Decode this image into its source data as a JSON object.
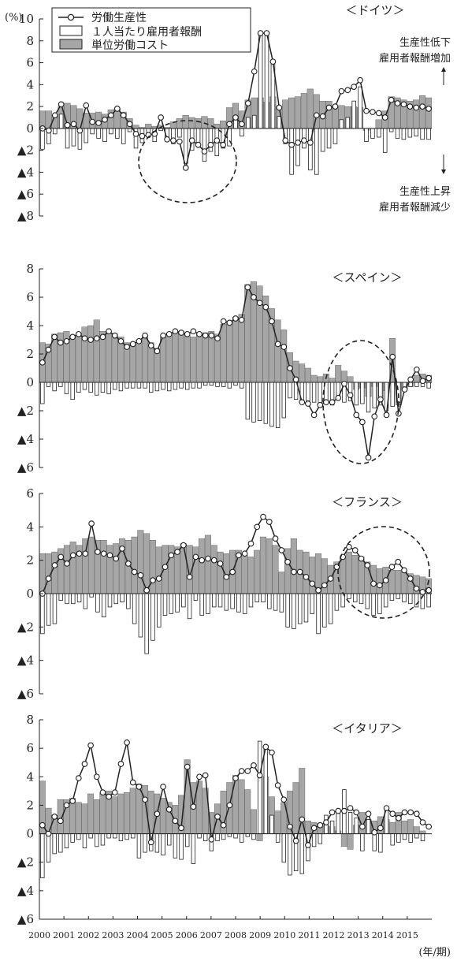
{
  "unit_label": "(%)",
  "xaxis_unit": "(年/期)",
  "x_tick_labels": [
    "2000",
    "2001",
    "2002",
    "2003",
    "2004",
    "2005",
    "2006",
    "2007",
    "2008",
    "2009",
    "2010",
    "2011",
    "2012",
    "2013",
    "2014",
    "2015"
  ],
  "legend": {
    "items": [
      {
        "label": "労働生産性",
        "kind": "line-marker"
      },
      {
        "label": "１人当たり雇用者報酬",
        "kind": "bar-white"
      },
      {
        "label": "単位労働コスト",
        "kind": "bar-gray"
      }
    ]
  },
  "annotations": {
    "upper_line1": "生産性低下",
    "upper_line2": "雇用者報酬増加",
    "lower_line1": "生産性上昇",
    "lower_line2": "雇用者報酬減少"
  },
  "colors": {
    "gray_bar": "#a6a6a6",
    "white_bar": "#ffffff",
    "line": "#222222",
    "frame": "#222222"
  },
  "chart_data": [
    {
      "type": "bar",
      "title": "＜ドイツ＞",
      "ylim": [
        -8,
        10
      ],
      "y_ticks": [
        -8,
        -6,
        -4,
        -2,
        0,
        2,
        4,
        6,
        8,
        10
      ],
      "y_tick_labels": [
        "▲8",
        "▲6",
        "▲4",
        "▲2",
        "0",
        "2",
        "4",
        "6",
        "8",
        "10"
      ],
      "x_start": 2000,
      "series": [
        {
          "name": "労働生産性",
          "type": "line",
          "values": [
            0.0,
            -0.2,
            1.2,
            2.2,
            0.3,
            0.4,
            -0.2,
            2.1,
            0.6,
            0.5,
            0.8,
            1.2,
            1.8,
            1.2,
            0.4,
            -0.5,
            -0.7,
            -0.6,
            -0.5,
            1.0,
            -1.0,
            -1.1,
            -1.2,
            -3.6,
            -1.1,
            -1.5,
            -2.1,
            -1.5,
            -1.1,
            -1.5,
            0.4,
            1.0,
            0.4,
            2.3,
            5.2,
            8.7,
            8.7,
            6.1,
            1.9,
            -1.1,
            -1.5,
            -1.3,
            -1.1,
            -1.3,
            1.2,
            1.1,
            1.9,
            2.0,
            3.4,
            3.5,
            3.8,
            4.4,
            1.6,
            1.5,
            1.4,
            1.0,
            2.6,
            2.3,
            2.2,
            2.0,
            1.9,
            2.0,
            1.8
          ]
        },
        {
          "name": "１人当たり雇用者報酬",
          "type": "bar",
          "values": [
            -1.9,
            -1.4,
            -0.5,
            1.3,
            -1.8,
            -1.6,
            -1.9,
            -1.3,
            -0.5,
            -0.9,
            -1.2,
            -0.5,
            -0.9,
            -1.4,
            -0.3,
            -1.8,
            -1.3,
            -0.4,
            -1.2,
            -0.2,
            -0.8,
            -1.4,
            -0.8,
            -3.2,
            -2.0,
            -1.5,
            -3.0,
            -2.1,
            -2.5,
            -1.8,
            -1.6,
            0.8,
            -0.7,
            1.0,
            1.2,
            8.7,
            8.7,
            6.1,
            1.1,
            -1.4,
            -4.2,
            -3.4,
            -1.8,
            -3.8,
            -4.2,
            -2.1,
            -1.8,
            -1.4,
            0.8,
            1.0,
            2.5,
            3.8,
            -1.2,
            -0.9,
            -0.8,
            -2.2,
            -0.3,
            -0.9,
            -1.0,
            -0.8,
            -0.7,
            -1.0,
            -1.0
          ]
        },
        {
          "name": "単位労働コスト",
          "type": "bar",
          "values": [
            1.6,
            1.6,
            1.2,
            2.0,
            2.3,
            2.1,
            1.8,
            1.4,
            1.4,
            1.5,
            1.3,
            1.7,
            1.8,
            1.5,
            0.9,
            0.3,
            0.1,
            0.4,
            0.2,
            0.3,
            0.1,
            0.6,
            0.9,
            1.2,
            1.0,
            0.9,
            1.1,
            0.9,
            0.4,
            0.7,
            1.9,
            2.3,
            1.6,
            2.6,
            2.8,
            2.8,
            2.4,
            2.9,
            2.0,
            2.6,
            2.8,
            2.9,
            3.2,
            3.6,
            3.1,
            2.5,
            2.5,
            2.0,
            2.1,
            2.0,
            2.0,
            1.9,
            -0.2,
            0.0,
            0.8,
            1.6,
            2.9,
            2.8,
            2.6,
            2.5,
            2.6,
            3.0,
            2.8
          ]
        }
      ]
    },
    {
      "type": "bar",
      "title": "＜スペイン＞",
      "ylim": [
        -6,
        8
      ],
      "y_ticks": [
        -6,
        -4,
        -2,
        0,
        2,
        4,
        6,
        8
      ],
      "y_tick_labels": [
        "▲6",
        "▲4",
        "▲2",
        "0",
        "2",
        "4",
        "6",
        "8"
      ],
      "x_start": 2000,
      "series": [
        {
          "name": "労働生産性",
          "type": "line",
          "values": [
            1.4,
            2.3,
            3.2,
            2.8,
            2.9,
            3.2,
            3.4,
            3.1,
            3.0,
            3.1,
            3.2,
            3.6,
            3.3,
            2.9,
            2.5,
            2.7,
            2.9,
            3.3,
            2.6,
            2.2,
            3.3,
            3.4,
            3.6,
            3.5,
            3.4,
            3.6,
            3.4,
            3.3,
            3.3,
            3.1,
            4.3,
            4.2,
            4.5,
            4.4,
            6.7,
            6.0,
            5.6,
            5.3,
            4.3,
            2.7,
            2.5,
            1.0,
            0.2,
            -1.4,
            -1.5,
            -2.3,
            -1.6,
            -1.4,
            -1.4,
            -1.1,
            -0.1,
            -0.9,
            -2.3,
            -2.8,
            -5.3,
            -2.4,
            -1.2,
            -2.3,
            1.8,
            -2.2,
            -0.5,
            0.2,
            0.9,
            0.1,
            0.3
          ]
        },
        {
          "name": "１人当たり雇用者報酬",
          "type": "bar",
          "values": [
            -1.5,
            -0.3,
            -0.6,
            -0.3,
            -0.8,
            -1.2,
            -0.7,
            -0.5,
            -0.7,
            -0.9,
            -0.7,
            -0.8,
            -0.5,
            -0.6,
            -0.4,
            -0.4,
            -0.4,
            -0.4,
            -0.7,
            -0.6,
            -0.5,
            -0.6,
            -0.5,
            -0.4,
            -0.5,
            -0.4,
            -0.4,
            -0.2,
            -0.2,
            -0.3,
            -0.3,
            -0.4,
            -0.2,
            -0.4,
            -2.6,
            -2.8,
            -2.7,
            -2.9,
            -3.1,
            -3.2,
            -2.5,
            -1.1,
            -1.2,
            -1.5,
            -1.3,
            -1.4,
            -1.6,
            -1.5,
            -1.6,
            -1.2,
            -1.4,
            -1.3,
            -1.6,
            -1.5,
            -2.1,
            -1.8,
            -1.6,
            -2.0,
            -1.7,
            -1.4,
            -0.5,
            -0.3,
            -0.3,
            -0.3,
            -0.4
          ]
        },
        {
          "name": "単位労働コスト",
          "type": "bar",
          "values": [
            2.8,
            2.7,
            3.4,
            3.5,
            3.6,
            3.2,
            3.4,
            3.9,
            4.0,
            4.4,
            3.6,
            3.5,
            3.4,
            3.2,
            2.8,
            2.7,
            3.0,
            3.3,
            2.8,
            2.4,
            3.2,
            3.4,
            3.5,
            3.6,
            3.3,
            3.2,
            3.4,
            3.5,
            3.6,
            3.4,
            4.1,
            4.3,
            4.6,
            4.8,
            6.9,
            7.1,
            6.8,
            6.1,
            5.2,
            4.4,
            3.7,
            2.1,
            1.5,
            1.3,
            1.0,
            0.5,
            0.4,
            0.6,
            0.3,
            1.2,
            0.8,
            0.4,
            -0.5,
            -0.4,
            -1.0,
            -0.3,
            -1.2,
            -0.6,
            3.1,
            -1.6,
            -0.5,
            -0.3,
            0.5,
            0.6,
            0.5
          ]
        }
      ]
    },
    {
      "type": "bar",
      "title": "＜フランス＞",
      "ylim": [
        -6,
        6
      ],
      "y_ticks": [
        -6,
        -4,
        -2,
        0,
        2,
        4,
        6
      ],
      "y_tick_labels": [
        "▲6",
        "▲4",
        "▲2",
        "0",
        "2",
        "4",
        "6"
      ],
      "x_start": 2000,
      "series": [
        {
          "name": "労働生産性",
          "type": "line",
          "values": [
            0.0,
            0.9,
            1.7,
            2.2,
            1.8,
            2.3,
            2.4,
            2.4,
            4.2,
            2.5,
            2.4,
            2.3,
            2.1,
            2.7,
            1.8,
            1.3,
            1.1,
            0.2,
            0.8,
            0.9,
            1.6,
            2.3,
            2.5,
            2.9,
            1.0,
            2.2,
            2.0,
            2.1,
            2.0,
            1.8,
            1.0,
            1.3,
            2.3,
            2.4,
            3.0,
            4.0,
            4.6,
            4.3,
            3.3,
            2.6,
            1.9,
            1.3,
            1.3,
            1.0,
            0.6,
            0.2,
            0.5,
            0.9,
            1.6,
            2.2,
            2.8,
            2.6,
            2.1,
            1.7,
            0.6,
            0.5,
            0.8,
            1.6,
            1.9,
            1.4,
            0.9,
            0.3,
            0.1,
            0.2
          ]
        },
        {
          "name": "１人当たり雇用者報酬",
          "type": "bar",
          "values": [
            -2.4,
            -1.9,
            -1.8,
            -0.4,
            -0.6,
            -0.6,
            -0.5,
            -0.9,
            -0.2,
            -1.1,
            -1.4,
            -0.8,
            -0.6,
            -0.5,
            -0.9,
            -1.8,
            -2.6,
            -3.6,
            -2.8,
            -2.0,
            -1.3,
            -1.2,
            -1.1,
            -0.8,
            -1.5,
            -0.4,
            -1.3,
            -1.2,
            -0.8,
            -0.8,
            -1.0,
            -0.9,
            -1.1,
            -1.2,
            -0.8,
            -0.5,
            -0.5,
            -0.9,
            -1.0,
            -1.1,
            -2.0,
            -2.1,
            -1.8,
            -1.7,
            -1.2,
            -2.4,
            -2.0,
            -1.8,
            -1.0,
            -0.8,
            -0.3,
            -0.5,
            -0.6,
            -0.9,
            -1.3,
            -1.2,
            -0.8,
            -0.4,
            -0.3,
            -0.5,
            -0.6,
            -0.8,
            -0.9,
            -0.8
          ]
        },
        {
          "name": "単位労働コスト",
          "type": "bar",
          "values": [
            2.4,
            2.4,
            2.5,
            2.7,
            2.9,
            3.1,
            2.9,
            3.3,
            3.4,
            3.2,
            3.2,
            2.9,
            3.0,
            3.3,
            3.2,
            3.4,
            3.8,
            3.6,
            3.2,
            2.8,
            2.9,
            2.9,
            2.8,
            3.0,
            2.9,
            2.8,
            3.3,
            3.5,
            2.9,
            2.5,
            2.4,
            2.6,
            2.6,
            2.3,
            2.2,
            2.6,
            3.4,
            3.3,
            2.9,
            1.3,
            2.7,
            3.3,
            2.6,
            2.5,
            2.2,
            2.4,
            2.1,
            1.7,
            1.9,
            2.1,
            2.5,
            2.3,
            2.2,
            1.9,
            1.7,
            1.5,
            1.6,
            1.4,
            1.4,
            1.3,
            1.2,
            1.1,
            1.0,
            0.9
          ]
        }
      ]
    },
    {
      "type": "bar",
      "title": "＜イタリア＞",
      "ylim": [
        -6,
        8
      ],
      "y_ticks": [
        -6,
        -4,
        -2,
        0,
        2,
        4,
        6,
        8
      ],
      "y_tick_labels": [
        "▲6",
        "▲4",
        "▲2",
        "0",
        "2",
        "4",
        "6",
        "8"
      ],
      "x_start": 2000,
      "series": [
        {
          "name": "労働生産性",
          "type": "line",
          "values": [
            0.6,
            0.0,
            1.2,
            0.9,
            2.0,
            2.3,
            3.9,
            4.9,
            6.2,
            4.0,
            2.9,
            2.6,
            2.9,
            4.9,
            6.4,
            3.6,
            3.3,
            2.4,
            -0.6,
            1.4,
            3.3,
            1.7,
            0.9,
            0.4,
            4.7,
            1.9,
            4.0,
            4.1,
            -0.4,
            1.2,
            0.6,
            2.0,
            3.9,
            4.4,
            4.4,
            4.8,
            4.1,
            6.1,
            5.7,
            3.4,
            2.4,
            0.5,
            -0.5,
            1.0,
            -0.8,
            0.4,
            0.6,
            0.8,
            1.5,
            1.6,
            1.6,
            1.8,
            1.5,
            0.5,
            1.4,
            0.1,
            0.4,
            1.8,
            1.4,
            1.1,
            1.5,
            1.5,
            1.4,
            0.8,
            0.5
          ]
        },
        {
          "name": "１人当たり雇用者報酬",
          "type": "bar",
          "values": [
            -3.1,
            -2.0,
            -1.4,
            -1.3,
            -1.0,
            -0.6,
            -0.4,
            -1.0,
            -0.3,
            -0.9,
            -0.8,
            -0.3,
            -0.3,
            -0.5,
            -0.4,
            -0.3,
            -1.7,
            -1.3,
            -1.2,
            -1.3,
            -1.5,
            -0.8,
            -1.7,
            -1.8,
            -0.9,
            -2.1,
            -0.3,
            -0.5,
            -1.2,
            -0.5,
            -0.4,
            -0.2,
            -0.3,
            -0.6,
            -0.2,
            -0.4,
            6.5,
            6.1,
            1.3,
            -0.6,
            -2.0,
            -2.9,
            -2.6,
            -2.8,
            -1.9,
            -0.9,
            -0.7,
            1.3,
            0.9,
            1.7,
            3.1,
            1.5,
            1.1,
            -1.2,
            1.0,
            -1.2,
            -1.3,
            1.9,
            -0.8,
            -0.6,
            -0.4,
            -0.6,
            -0.3,
            -0.5
          ]
        },
        {
          "name": "単位労働コスト",
          "type": "bar",
          "values": [
            3.7,
            1.8,
            1.3,
            2.4,
            2.4,
            2.5,
            2.2,
            2.1,
            2.8,
            2.4,
            2.9,
            3.0,
            2.6,
            2.8,
            2.9,
            3.2,
            3.5,
            3.4,
            3.0,
            2.8,
            2.5,
            2.2,
            2.0,
            2.7,
            5.2,
            3.6,
            3.7,
            3.2,
            1.5,
            2.1,
            3.0,
            3.6,
            4.1,
            3.8,
            3.1,
            1.7,
            -0.5,
            4.0,
            2.6,
            1.6,
            2.2,
            3.0,
            3.6,
            4.6,
            0.9,
            0.8,
            0.7,
            0.6,
            0.5,
            0.2,
            -0.9,
            -1.1,
            0.6,
            1.5,
            1.0,
            0.9,
            1.2,
            1.0,
            0.8,
            1.5,
            0.9,
            1.0,
            0.5,
            0.2
          ]
        }
      ]
    }
  ]
}
